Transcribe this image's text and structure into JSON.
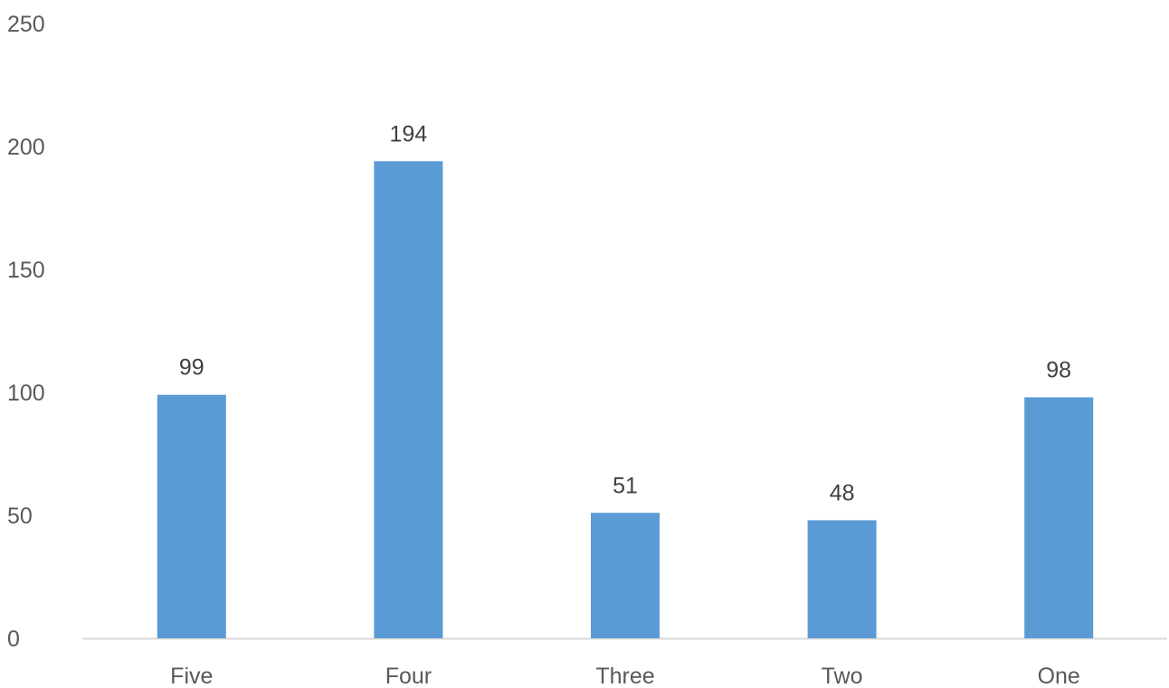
{
  "chart_data": {
    "type": "bar",
    "categories": [
      "Five",
      "Four",
      "Three",
      "Two",
      "One"
    ],
    "values": [
      99,
      194,
      51,
      48,
      98
    ],
    "data_labels": [
      "99",
      "194",
      "51",
      "48",
      "98"
    ],
    "y_ticks": [
      "0",
      "50",
      "100",
      "150",
      "200",
      "250"
    ],
    "ylim": [
      0,
      250
    ],
    "grid": false,
    "legend": false,
    "bar_color": "#5B9BD5",
    "axis_color": "#D9D9D9",
    "text_color": "#595959"
  }
}
